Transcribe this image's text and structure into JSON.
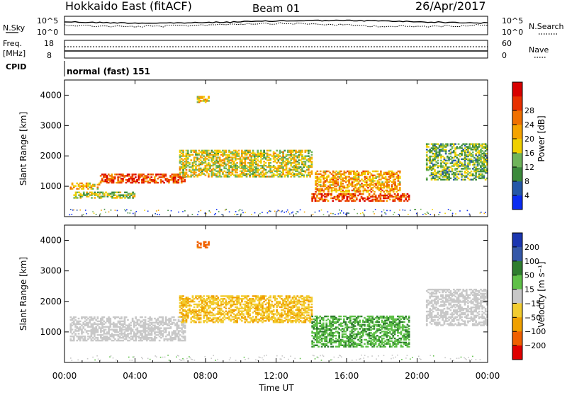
{
  "header": {
    "station": "Hokkaido East (fitACF)",
    "beam": "Beam 01",
    "date": "26/Apr/2017"
  },
  "side_labels": {
    "nsky": "N.Sky",
    "nsearch": "N.Search",
    "freq": "Freq.",
    "freq_unit": "[MHz]",
    "nave": "Nave",
    "cpid": "CPID",
    "cpid_value": "normal (fast) 151"
  },
  "noise_panel": {
    "left_ticks": [
      "10^5",
      "10^0"
    ],
    "right_ticks": [
      "10^5",
      "10^0"
    ]
  },
  "freq_panel": {
    "left_ticks": [
      "18",
      "8"
    ],
    "right_ticks": [
      "60",
      "0"
    ]
  },
  "chart_data": [
    {
      "type": "heatmap",
      "title": "",
      "xlabel": "",
      "ylabel": "Slant Range [km]",
      "xlim": [
        "00:00",
        "24:00"
      ],
      "ylim": [
        0,
        4500
      ],
      "y_ticks": [
        "1000",
        "2000",
        "3000",
        "4000"
      ],
      "colorbar": {
        "label": "Power [dB]",
        "ticks": [
          "4",
          "8",
          "12",
          "16",
          "20",
          "24",
          "28"
        ],
        "colors": [
          "#0a2cf2",
          "#2457a8",
          "#3c8a3c",
          "#6fb45a",
          "#f0d000",
          "#f5a300",
          "#f07000",
          "#e83000",
          "#d80000"
        ]
      },
      "regions": [
        {
          "t0": 0.3,
          "t1": 2.0,
          "r0": 900,
          "r1": 1100,
          "value": 18
        },
        {
          "t0": 2.0,
          "t1": 6.8,
          "r0": 1100,
          "r1": 1400,
          "value": 26
        },
        {
          "t0": 0.5,
          "t1": 4.0,
          "r0": 600,
          "r1": 800,
          "value": 14
        },
        {
          "t0": 6.5,
          "t1": 14.0,
          "r0": 1300,
          "r1": 2200,
          "value": 16
        },
        {
          "t0": 14.0,
          "t1": 19.5,
          "r0": 500,
          "r1": 750,
          "value": 26
        },
        {
          "t0": 14.2,
          "t1": 19.0,
          "r0": 800,
          "r1": 1500,
          "value": 20
        },
        {
          "t0": 20.5,
          "t1": 24.0,
          "r0": 1200,
          "r1": 2400,
          "value": 12
        },
        {
          "t0": 7.5,
          "t1": 8.2,
          "r0": 3750,
          "r1": 3950,
          "value": 18
        }
      ]
    },
    {
      "type": "heatmap",
      "title": "",
      "xlabel": "Time UT",
      "ylabel": "Slant Range [km]",
      "xlim": [
        "00:00",
        "24:00"
      ],
      "ylim": [
        0,
        4500
      ],
      "x_ticks": [
        "00:00",
        "04:00",
        "08:00",
        "12:00",
        "16:00",
        "20:00",
        "00:00"
      ],
      "y_ticks": [
        "1000",
        "2000",
        "3000",
        "4000"
      ],
      "colorbar": {
        "label": "Velocity [m s⁻¹]",
        "ticks": [
          "200",
          "100",
          "50",
          "15",
          "−15",
          "−50",
          "−100",
          "−200"
        ],
        "colors": [
          "#1b36b0",
          "#3558a8",
          "#2e7d2e",
          "#5fc048",
          "#c8c8c8",
          "#f2cc30",
          "#f0a000",
          "#f06000",
          "#e00000"
        ]
      },
      "regions": [
        {
          "t0": 0.3,
          "t1": 6.8,
          "r0": 700,
          "r1": 1500,
          "value": 0
        },
        {
          "t0": 6.5,
          "t1": 14.0,
          "r0": 1300,
          "r1": 2200,
          "value": -30
        },
        {
          "t0": 14.0,
          "t1": 19.5,
          "r0": 500,
          "r1": 1500,
          "value": 30
        },
        {
          "t0": 20.5,
          "t1": 24.0,
          "r0": 1200,
          "r1": 2400,
          "value": 0
        },
        {
          "t0": 7.5,
          "t1": 8.2,
          "r0": 3750,
          "r1": 3950,
          "value": -80
        }
      ]
    }
  ]
}
